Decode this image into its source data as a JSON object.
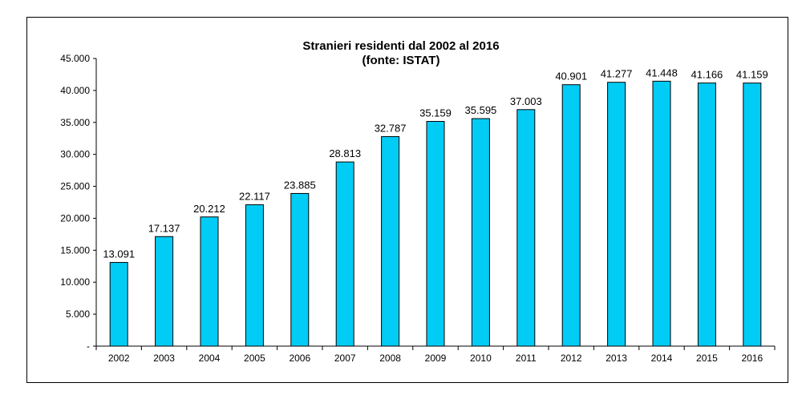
{
  "colors": {
    "bar_fill": "#00CCF5",
    "bar_stroke": "#000000",
    "axis": "#000000",
    "frame": "#000000"
  },
  "chart_data": {
    "type": "bar",
    "title": [
      "Stranieri residenti dal 2002 al 2016",
      "(fonte: ISTAT)"
    ],
    "categories": [
      "2002",
      "2003",
      "2004",
      "2005",
      "2006",
      "2007",
      "2008",
      "2009",
      "2010",
      "2011",
      "2012",
      "2013",
      "2014",
      "2015",
      "2016"
    ],
    "values": [
      13091,
      17137,
      20212,
      22117,
      23885,
      28813,
      32787,
      35159,
      35595,
      37003,
      40901,
      41277,
      41448,
      41166,
      41159
    ],
    "value_labels": [
      "13.091",
      "17.137",
      "20.212",
      "22.117",
      "23.885",
      "28.813",
      "32.787",
      "35.159",
      "35.595",
      "37.003",
      "40.901",
      "41.277",
      "41.448",
      "41.166",
      "41.159"
    ],
    "yticks": [
      0,
      5000,
      10000,
      15000,
      20000,
      25000,
      30000,
      35000,
      40000,
      45000
    ],
    "ytick_labels": [
      "-",
      "5.000",
      "10.000",
      "15.000",
      "20.000",
      "25.000",
      "30.000",
      "35.000",
      "40.000",
      "45.000"
    ],
    "ylim": [
      0,
      45000
    ],
    "grid": false,
    "legend": "none"
  }
}
